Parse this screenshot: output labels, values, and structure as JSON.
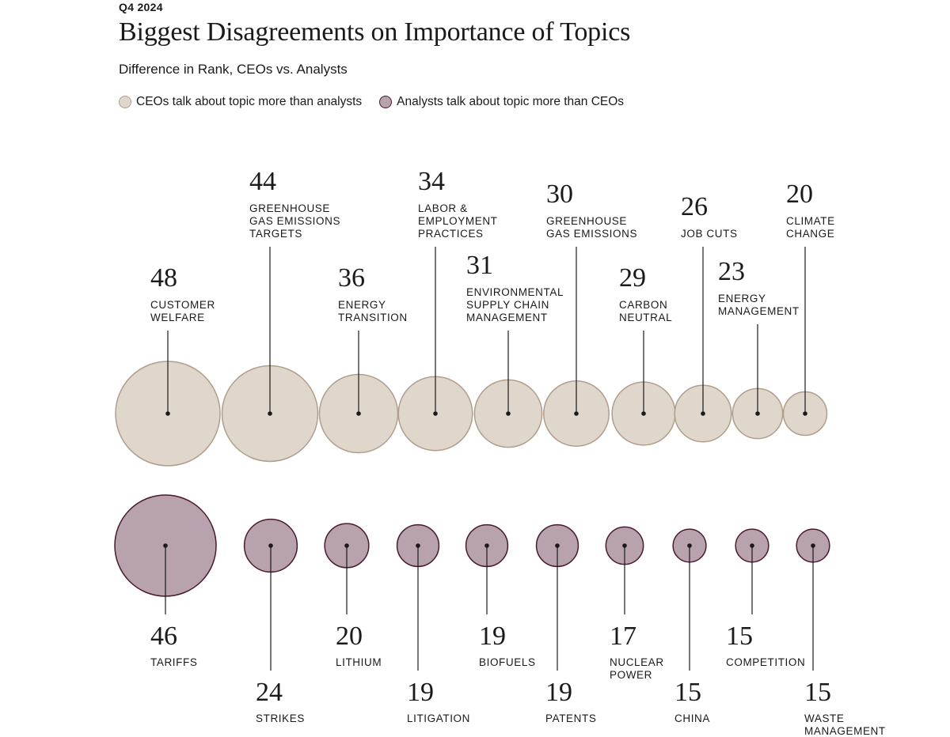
{
  "header": {
    "kicker": "Q4 2024",
    "title": "Biggest Disagreements on Importance of Topics",
    "subtitle": "Difference in Rank, CEOs vs. Analysts"
  },
  "legend": {
    "ceo_label": "CEOs talk about topic more than analysts",
    "analyst_label": "Analysts talk about topic more than CEOs"
  },
  "colors": {
    "ceo_fill": "#e0d7cc",
    "ceo_stroke": "#b09e8c",
    "analyst_fill": "#b8a2ad",
    "analyst_stroke": "#4a1a2e",
    "line": "#1a1a1a"
  },
  "chart_data": {
    "type": "bubble",
    "value_name": "Difference in Rank",
    "series": [
      {
        "name": "CEOs talk about topic more than analysts",
        "points": [
          {
            "label": [
              "CUSTOMER",
              "WELFARE"
            ],
            "value": 48
          },
          {
            "label": [
              "GREENHOUSE",
              "GAS EMISSIONS",
              "TARGETS"
            ],
            "value": 44
          },
          {
            "label": [
              "ENERGY",
              "TRANSITION"
            ],
            "value": 36
          },
          {
            "label": [
              "LABOR &",
              "EMPLOYMENT",
              "PRACTICES"
            ],
            "value": 34
          },
          {
            "label": [
              "ENVIRONMENTAL",
              "SUPPLY CHAIN",
              "MANAGEMENT"
            ],
            "value": 31
          },
          {
            "label": [
              "GREENHOUSE",
              "GAS EMISSIONS"
            ],
            "value": 30
          },
          {
            "label": [
              "CARBON",
              "NEUTRAL"
            ],
            "value": 29
          },
          {
            "label": [
              "JOB CUTS"
            ],
            "value": 26
          },
          {
            "label": [
              "ENERGY",
              "MANAGEMENT"
            ],
            "value": 23
          },
          {
            "label": [
              "CLIMATE",
              "CHANGE"
            ],
            "value": 20
          }
        ]
      },
      {
        "name": "Analysts talk about topic more than CEOs",
        "points": [
          {
            "label": [
              "TARIFFS"
            ],
            "value": 46
          },
          {
            "label": [
              "STRIKES"
            ],
            "value": 24
          },
          {
            "label": [
              "LITHIUM"
            ],
            "value": 20
          },
          {
            "label": [
              "LITIGATION"
            ],
            "value": 19
          },
          {
            "label": [
              "BIOFUELS"
            ],
            "value": 19
          },
          {
            "label": [
              "PATENTS"
            ],
            "value": 19
          },
          {
            "label": [
              "NUCLEAR",
              "POWER"
            ],
            "value": 17
          },
          {
            "label": [
              "CHINA"
            ],
            "value": 15
          },
          {
            "label": [
              "COMPETITION"
            ],
            "value": 15
          },
          {
            "label": [
              "WASTE",
              "MANAGEMENT"
            ],
            "value": 15
          }
        ]
      }
    ]
  }
}
